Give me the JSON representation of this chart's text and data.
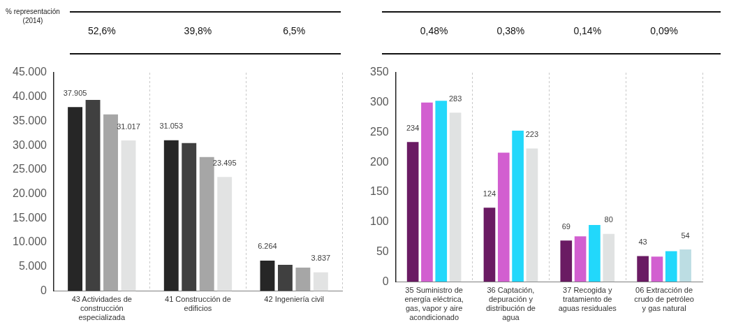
{
  "chart_data": [
    {
      "type": "bar",
      "categories": [
        "43 Actividades de construcción especializada",
        "41 Construcción de edificios",
        "42 Ingeniería civil"
      ],
      "series": [
        {
          "color": "#262626",
          "values": [
            37905,
            31053,
            6264
          ],
          "value_labels": [
            "37.905",
            "31.053",
            "6.264"
          ]
        },
        {
          "color": "#404040",
          "values": [
            39400,
            30500,
            5400
          ]
        },
        {
          "color": "#a6a6a6",
          "values": [
            36400,
            27600,
            4800
          ]
        },
        {
          "color": "#e2e3e3",
          "values": [
            31017,
            23495,
            3837
          ],
          "value_labels": [
            "31.017",
            "23.495",
            "3.837"
          ]
        }
      ],
      "ylim": [
        0,
        45000
      ],
      "yticks": [
        {
          "value": 0,
          "label": "0"
        },
        {
          "value": 5000,
          "label": "5.000"
        },
        {
          "value": 10000,
          "label": "10.000"
        },
        {
          "value": 15000,
          "label": "15.000"
        },
        {
          "value": 20000,
          "label": "20.000"
        },
        {
          "value": 25000,
          "label": "25.000"
        },
        {
          "value": 30000,
          "label": "30.000"
        },
        {
          "value": 35000,
          "label": "35.000"
        },
        {
          "value": 40000,
          "label": "40.000"
        },
        {
          "value": 45000,
          "label": "45.000"
        }
      ],
      "grid": "x",
      "legend": false,
      "annotations": [
        "% representación (2014)",
        "52,6%",
        "39,8%",
        "6,5%"
      ]
    },
    {
      "type": "bar",
      "categories": [
        "35 Suministro de energía eléctrica, gas, vapor y aire acondicionado",
        "36 Captación, depuración y distribución de agua",
        "37 Recogida y tratamiento de aguas residuales",
        "06 Extracción de crudo de petróleo y gas natural"
      ],
      "series": [
        {
          "color": "#6a1b63",
          "values": [
            234,
            124,
            69,
            43
          ],
          "value_labels": [
            "234",
            "124",
            "69",
            "43"
          ]
        },
        {
          "color": "#d25fd0",
          "values": [
            300,
            216,
            76,
            42
          ]
        },
        {
          "color": "#22d8fb",
          "values": [
            303,
            253,
            95,
            51
          ]
        },
        {
          "colors": [
            "#e0e2e2",
            "#e0e2e2",
            "#e0e2e2",
            "#bcdde3"
          ],
          "values": [
            283,
            223,
            80,
            54
          ],
          "value_labels": [
            "283",
            "223",
            "80",
            "54"
          ]
        }
      ],
      "ylim": [
        0,
        350
      ],
      "yticks": [
        0,
        50,
        100,
        150,
        200,
        250,
        300,
        350
      ],
      "grid": "x",
      "legend": false,
      "annotations": [
        "0,48%",
        "0,38%",
        "0,14%",
        "0,09%"
      ]
    }
  ]
}
